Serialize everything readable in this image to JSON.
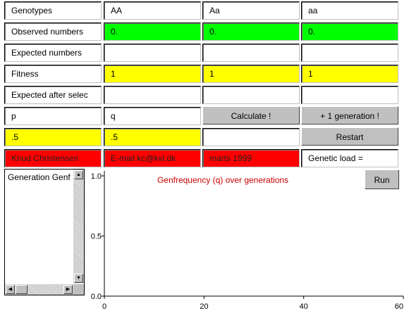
{
  "grid": {
    "header": [
      "Genotypes",
      "AA",
      "Aa",
      "aa"
    ],
    "observed": {
      "label": "Observed numbers",
      "values": [
        "0.",
        "0.",
        "0."
      ]
    },
    "expected": {
      "label": "Expected numbers",
      "values": [
        "",
        "",
        ""
      ]
    },
    "fitness": {
      "label": "Fitness",
      "values": [
        "1",
        "1",
        "1"
      ]
    },
    "expected_after": {
      "label": "Expected after selec",
      "values": [
        "",
        "",
        ""
      ]
    },
    "p_label": "p",
    "q_label": "q",
    "p_value": ".5",
    "q_value": ".5",
    "result_value": "",
    "calculate_label": "Calculate !",
    "next_generation_label": "+ 1 generation !",
    "restart_label": "Restart",
    "author": "Knud Christensen",
    "email": "E-mail kc@kvl.dk",
    "date": "marts 1999",
    "genetic_load_label": "Genetic load ="
  },
  "list": {
    "header": "Generation Genf"
  },
  "chart": {
    "run_label": "Run"
  },
  "colors": {
    "observed": "#00ff00",
    "input": "#ffff00",
    "credits": "#ff0000",
    "button": "#c0c0c0",
    "chart_title": "#cc0000"
  },
  "chart_data": {
    "type": "line",
    "title": "Genfrequency (q) over generations",
    "xlabel": "",
    "ylabel": "",
    "xlim": [
      0,
      60
    ],
    "ylim": [
      0.0,
      1.0
    ],
    "x_ticks": [
      "0",
      "20",
      "40",
      "60"
    ],
    "y_ticks": [
      "0.0",
      "0.5",
      "1.0"
    ],
    "series": [],
    "grid": false
  }
}
